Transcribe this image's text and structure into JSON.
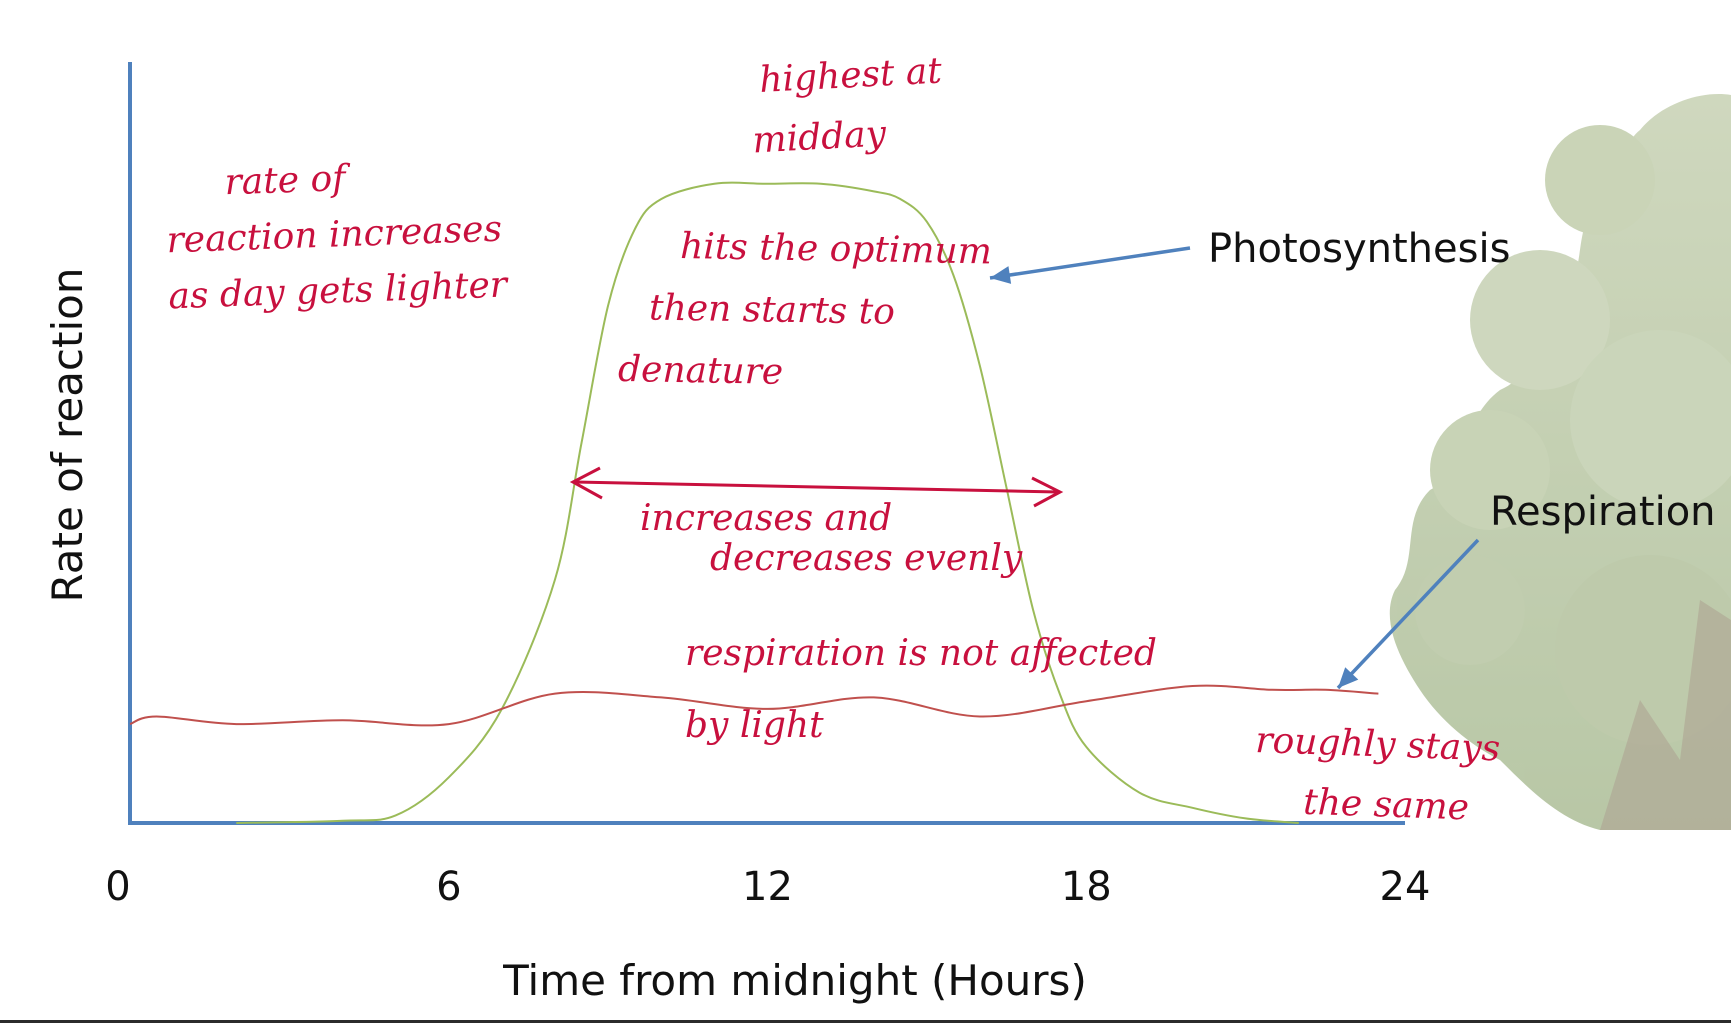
{
  "chart_data": {
    "type": "line",
    "title": "",
    "xlabel": "Time from midnight (Hours)",
    "ylabel": "Rate of reaction",
    "xlim": [
      0,
      24
    ],
    "x_ticks": [
      "0",
      "6",
      "12",
      "18",
      "24"
    ],
    "y_ticks": [],
    "ylim": [
      0,
      100
    ],
    "grid": false,
    "series": [
      {
        "name": "Photosynthesis",
        "color": "#9bbb59",
        "x": [
          2,
          4,
          5,
          6,
          7,
          8,
          8.5,
          9,
          9.5,
          10,
          11,
          12,
          13,
          14,
          14.5,
          15,
          15.5,
          16,
          16.5,
          17,
          17.5,
          18,
          19,
          20,
          21,
          22
        ],
        "y": [
          0,
          0.3,
          1,
          6,
          15,
          32,
          50,
          68,
          78,
          82,
          84,
          84,
          84,
          83,
          82,
          79,
          72,
          60,
          44,
          28,
          17,
          10,
          4,
          2,
          0.6,
          0
        ]
      },
      {
        "name": "Respiration",
        "color": "#c0504d",
        "x": [
          0,
          0.5,
          2,
          4,
          6,
          8,
          10,
          12,
          14,
          16,
          18,
          20,
          21.5,
          22.5,
          23.5
        ],
        "y": [
          13,
          14,
          13,
          13.5,
          13,
          17,
          16.5,
          15,
          16.5,
          14,
          16,
          18,
          17.5,
          17.5,
          17
        ]
      }
    ],
    "annotations": [
      {
        "id": "highest",
        "lines": [
          "highest at",
          "midday"
        ]
      },
      {
        "id": "rate",
        "lines": [
          "rate of",
          "reaction increases",
          "as day gets lighter"
        ]
      },
      {
        "id": "optimum",
        "lines": [
          "hits the optimum",
          "then starts to",
          "denature"
        ]
      },
      {
        "id": "evenly",
        "lines": [
          "increases and",
          "decreases evenly"
        ]
      },
      {
        "id": "resp",
        "lines": [
          "respiration is not affected",
          "by light"
        ]
      },
      {
        "id": "same",
        "lines": [
          "roughly stays",
          "the same"
        ]
      }
    ],
    "colors": {
      "axis": "#4f81bd",
      "arrow": "#4f81bd",
      "ink": "#c8103e"
    }
  }
}
